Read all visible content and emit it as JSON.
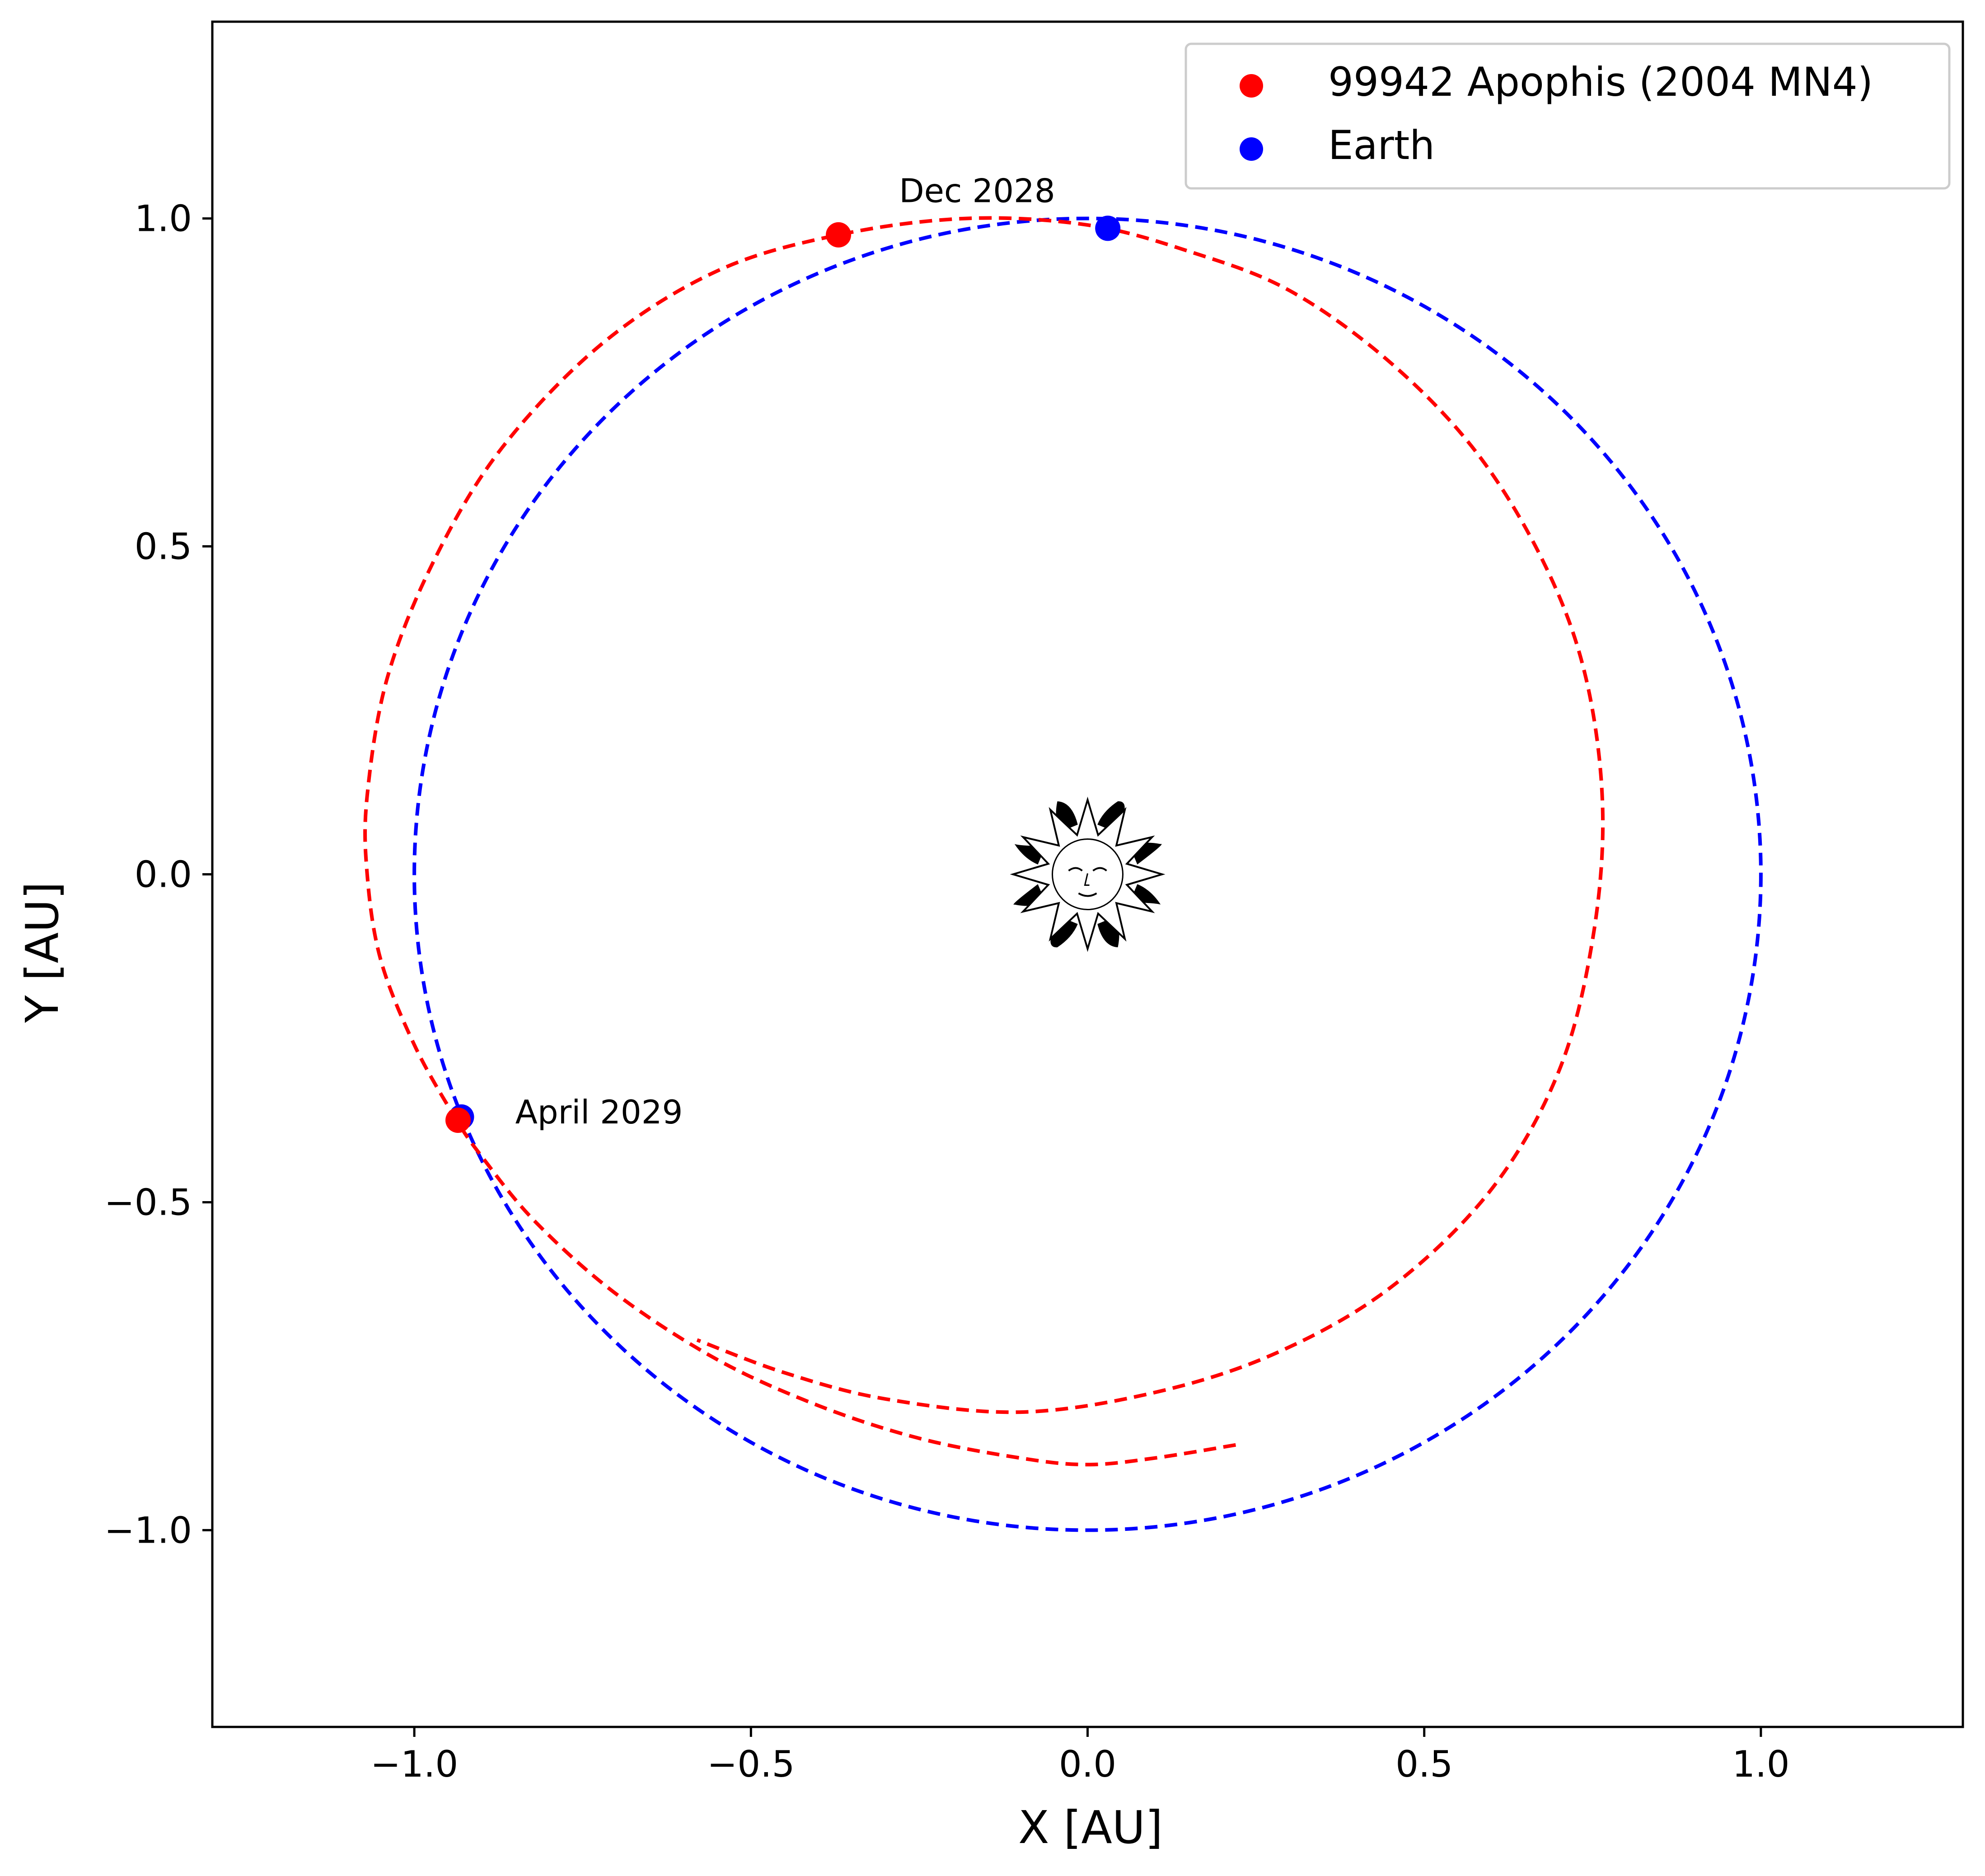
{
  "chart_data": {
    "type": "scatter",
    "xlabel": "X [AU]",
    "ylabel": "Y [AU]",
    "xlim": [
      -1.3,
      1.3
    ],
    "ylim": [
      -1.3,
      1.3
    ],
    "xticks": [
      -1.0,
      -0.5,
      0.0,
      0.5,
      1.0
    ],
    "yticks": [
      -1.0,
      -0.5,
      0.0,
      0.5,
      1.0
    ],
    "xtick_labels": [
      "−1.0",
      "−0.5",
      "0.0",
      "0.5",
      "1.0"
    ],
    "ytick_labels": [
      "−1.0",
      "−0.5",
      "0.0",
      "0.5",
      "1.0"
    ],
    "grid": false,
    "legend_position": "top-right",
    "center_icon": "sun-icon",
    "series": [
      {
        "name": "99942 Apophis (2004 MN4)",
        "color": "#ff0000",
        "line_style": "dashed",
        "orbit_path": [
          [
            0.22,
            -0.87
          ],
          [
            0.1,
            -0.89
          ],
          [
            0.0,
            -0.9
          ],
          [
            -0.1,
            -0.89
          ],
          [
            -0.25,
            -0.86
          ],
          [
            -0.4,
            -0.81
          ],
          [
            -0.55,
            -0.74
          ],
          [
            -0.7,
            -0.64
          ],
          [
            -0.82,
            -0.53
          ],
          [
            -0.9,
            -0.43
          ],
          [
            -0.94,
            -0.37
          ],
          [
            -1.0,
            -0.26
          ],
          [
            -1.05,
            -0.13
          ],
          [
            -1.07,
            0.0
          ],
          [
            -1.07,
            0.12
          ],
          [
            -1.04,
            0.3
          ],
          [
            -0.97,
            0.48
          ],
          [
            -0.87,
            0.65
          ],
          [
            -0.72,
            0.81
          ],
          [
            -0.55,
            0.92
          ],
          [
            -0.37,
            0.975
          ],
          [
            -0.18,
            1.0
          ],
          [
            0.0,
            0.99
          ],
          [
            0.15,
            0.95
          ],
          [
            0.3,
            0.89
          ],
          [
            0.45,
            0.78
          ],
          [
            0.58,
            0.64
          ],
          [
            0.68,
            0.47
          ],
          [
            0.74,
            0.3
          ],
          [
            0.765,
            0.1
          ],
          [
            0.75,
            -0.1
          ],
          [
            0.7,
            -0.3
          ],
          [
            0.6,
            -0.48
          ],
          [
            0.45,
            -0.63
          ],
          [
            0.28,
            -0.73
          ],
          [
            0.1,
            -0.79
          ],
          [
            -0.1,
            -0.82
          ],
          [
            -0.3,
            -0.8
          ],
          [
            -0.45,
            -0.76
          ],
          [
            -0.58,
            -0.71
          ]
        ],
        "markers": [
          {
            "x": -0.37,
            "y": 0.975
          },
          {
            "x": -0.935,
            "y": -0.375
          }
        ]
      },
      {
        "name": "Earth",
        "color": "#0000ff",
        "line_style": "dashed",
        "orbit_circle": {
          "cx": 0.0,
          "cy": 0.0,
          "r": 1.0
        },
        "markers": [
          {
            "x": 0.03,
            "y": 0.985
          },
          {
            "x": -0.93,
            "y": -0.37
          }
        ]
      }
    ],
    "annotations": [
      {
        "text": "Dec 2028",
        "x": -0.28,
        "y": 1.025
      },
      {
        "text": "April 2029",
        "x": -0.85,
        "y": -0.38
      }
    ]
  }
}
